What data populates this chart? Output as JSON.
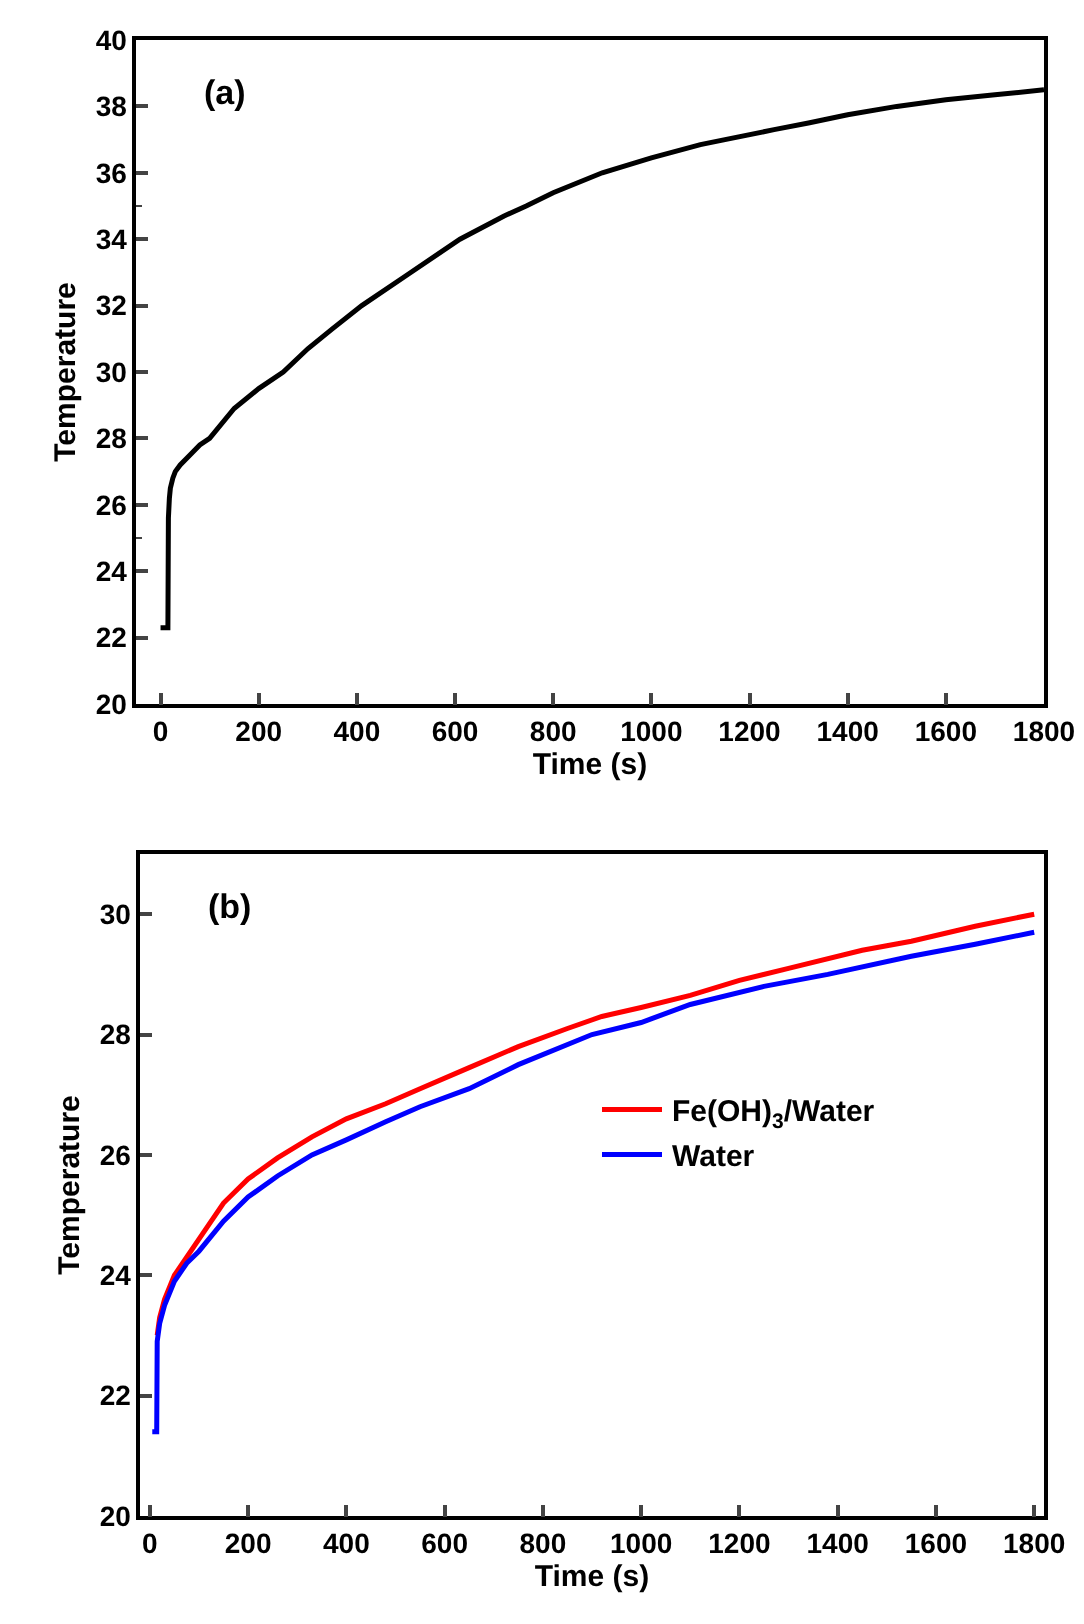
{
  "chart_data": [
    {
      "type": "line",
      "xlabel": "Time (s)",
      "ylabel": "Temperature",
      "annotations": [
        "(a)"
      ],
      "xlim": [
        -50,
        1800
      ],
      "ylim": [
        20,
        40
      ],
      "xticks": [
        0,
        200,
        400,
        600,
        800,
        1000,
        1200,
        1400,
        1600,
        1800
      ],
      "yticks": [
        20,
        22,
        24,
        26,
        28,
        30,
        32,
        34,
        36,
        38,
        40
      ],
      "grid": false,
      "legend": false,
      "marker": "none",
      "line_style": "solid",
      "series": [
        {
          "color": "#000000",
          "x": [
            0,
            10,
            15,
            16,
            18,
            20,
            25,
            30,
            40,
            60,
            80,
            100,
            150,
            200,
            250,
            300,
            350,
            410,
            500,
            610,
            700,
            745,
            800,
            900,
            1000,
            1100,
            1150,
            1250,
            1320,
            1400,
            1500,
            1600,
            1700,
            1800
          ],
          "values": [
            22.3,
            22.3,
            22.3,
            25.6,
            26.2,
            26.5,
            26.8,
            27.0,
            27.2,
            27.5,
            27.8,
            28.0,
            28.9,
            29.5,
            30.0,
            30.7,
            31.3,
            32.0,
            32.9,
            34.0,
            34.7,
            35.0,
            35.4,
            36.0,
            36.45,
            36.85,
            37.0,
            37.3,
            37.5,
            37.75,
            38.0,
            38.2,
            38.35,
            38.5
          ]
        }
      ]
    },
    {
      "type": "line",
      "xlabel": "Time (s)",
      "ylabel": "Temperature",
      "annotations": [
        "(b)"
      ],
      "xlim": [
        -20,
        1820
      ],
      "ylim": [
        20,
        31
      ],
      "xticks": [
        0,
        200,
        400,
        600,
        800,
        1000,
        1200,
        1400,
        1600,
        1800
      ],
      "yticks": [
        20,
        22,
        24,
        26,
        28,
        30
      ],
      "grid": false,
      "legend": "right",
      "marker": "none",
      "line_style": "solid",
      "series": [
        {
          "name": "Fe(OH)$_{3}$/Water",
          "color": "#ff0000",
          "x": [
            15,
            20,
            30,
            50,
            75,
            100,
            150,
            200,
            260,
            330,
            400,
            480,
            550,
            650,
            750,
            850,
            920,
            1000,
            1100,
            1200,
            1300,
            1450,
            1550,
            1680,
            1800
          ],
          "values": [
            23.0,
            23.3,
            23.6,
            24.0,
            24.3,
            24.6,
            25.2,
            25.6,
            25.95,
            26.3,
            26.6,
            26.85,
            27.1,
            27.45,
            27.8,
            28.1,
            28.3,
            28.45,
            28.65,
            28.9,
            29.1,
            29.4,
            29.55,
            29.8,
            30.0
          ]
        },
        {
          "name": "Water",
          "color": "#0000ff",
          "x": [
            5,
            10,
            14,
            15,
            20,
            30,
            50,
            75,
            100,
            150,
            200,
            260,
            330,
            400,
            480,
            550,
            650,
            750,
            900,
            1000,
            1100,
            1250,
            1380,
            1550,
            1680,
            1800
          ],
          "values": [
            21.4,
            21.4,
            21.4,
            22.9,
            23.2,
            23.5,
            23.9,
            24.2,
            24.4,
            24.9,
            25.3,
            25.65,
            26.0,
            26.25,
            26.55,
            26.8,
            27.1,
            27.5,
            28.0,
            28.2,
            28.5,
            28.8,
            29.0,
            29.3,
            29.5,
            29.7
          ]
        }
      ]
    }
  ]
}
